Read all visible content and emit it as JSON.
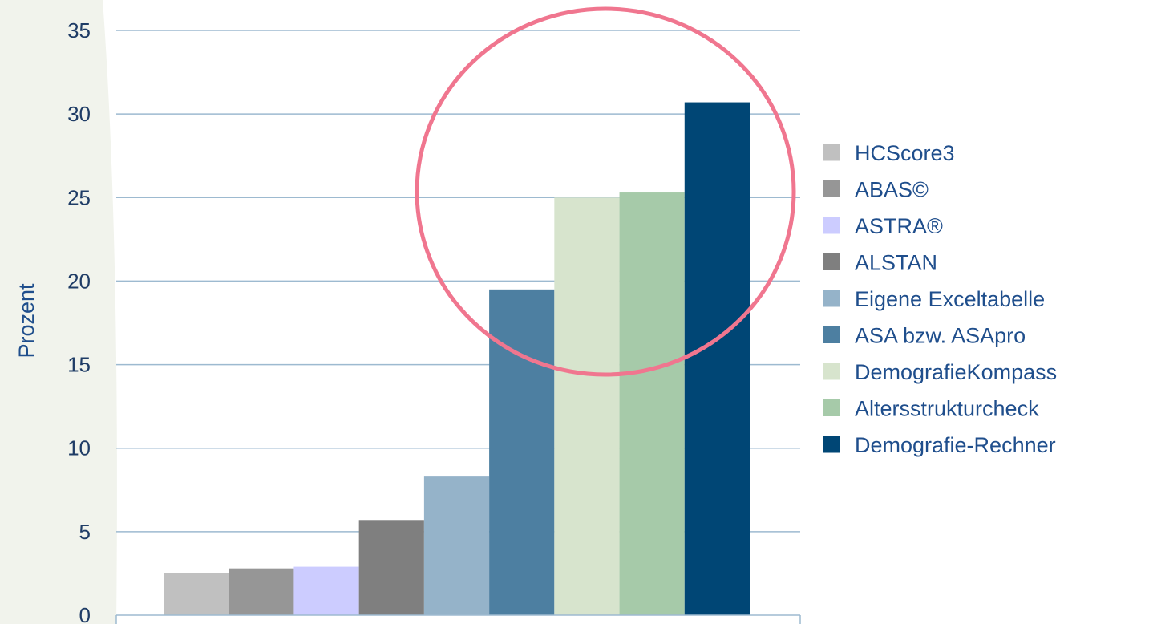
{
  "colors": {
    "background_band": "#f1f3ec",
    "gridline": "#9dbad0",
    "axis": "#9dbad0",
    "text": "#1f4e8c",
    "highlight_circle": "#f0768f"
  },
  "chart_data": {
    "type": "bar",
    "title": "",
    "xlabel": "",
    "ylabel": "Prozent",
    "ylim": [
      0,
      35
    ],
    "yticks": [
      0,
      5,
      10,
      15,
      20,
      25,
      30,
      35
    ],
    "grid": true,
    "legend_position": "right",
    "series": [
      {
        "name": "HCScore3",
        "values": [
          2.5
        ],
        "color": "#c0c0c0"
      },
      {
        "name": "ABAS©",
        "values": [
          2.8
        ],
        "color": "#969696"
      },
      {
        "name": "ASTRA®",
        "values": [
          2.9
        ],
        "color": "#ccccff"
      },
      {
        "name": "ALSTAN",
        "values": [
          5.7
        ],
        "color": "#7f7f7f"
      },
      {
        "name": "Eigene Exceltabelle",
        "values": [
          8.3
        ],
        "color": "#95b3c9"
      },
      {
        "name": "ASA bzw. ASApro",
        "values": [
          19.5
        ],
        "color": "#4d7fa1"
      },
      {
        "name": "DemografieKompass",
        "values": [
          25.0
        ],
        "color": "#d7e4cd"
      },
      {
        "name": "Altersstrukturcheck",
        "values": [
          25.3
        ],
        "color": "#a6caa9"
      },
      {
        "name": "Demografie-Rechner",
        "values": [
          30.7
        ],
        "color": "#004675"
      }
    ]
  }
}
